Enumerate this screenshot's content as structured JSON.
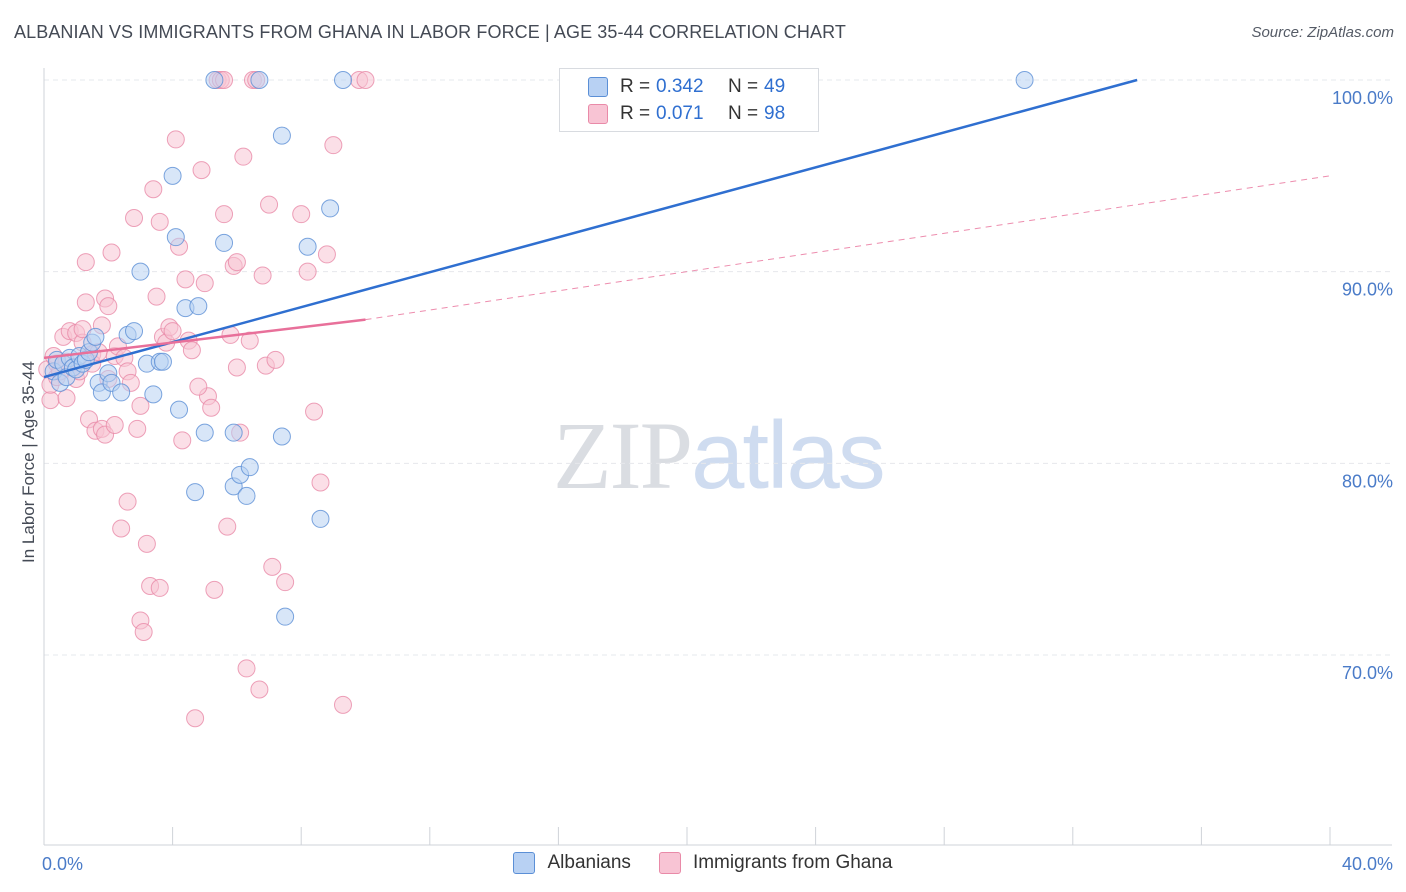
{
  "title": "ALBANIAN VS IMMIGRANTS FROM GHANA IN LABOR FORCE | AGE 35-44 CORRELATION CHART",
  "source": "Source: ZipAtlas.com",
  "watermark": {
    "zip": "ZIP",
    "atlas": "atlas"
  },
  "legend": {
    "rows": [
      {
        "r_label": "R =",
        "r_value": "0.342",
        "n_label": "N =",
        "n_value": "49"
      },
      {
        "r_label": "R =",
        "r_value": "0.071",
        "n_label": "N =",
        "n_value": "98"
      }
    ]
  },
  "colors": {
    "albanians_fill": "#b8d1f3",
    "albanians_stroke": "#5b8fd6",
    "albanians_line": "#2f6fd0",
    "ghana_fill": "#f8c4d4",
    "ghana_stroke": "#e98aa8",
    "ghana_line": "#e8709a",
    "tick_text": "#4a7bc8",
    "grid": "#e6e8ec"
  },
  "chart_data": {
    "type": "scatter",
    "title": "ALBANIAN VS IMMIGRANTS FROM GHANA IN LABOR FORCE | AGE 35-44 CORRELATION CHART",
    "xlabel": "",
    "ylabel": "In Labor Force | Age 35-44",
    "xlim": [
      0,
      40
    ],
    "ylim": [
      60,
      101
    ],
    "x_ticks": [
      {
        "value": 0,
        "label": "0.0%"
      },
      {
        "value": 40,
        "label": "40.0%"
      }
    ],
    "y_ticks": [
      {
        "value": 100,
        "label": "100.0%"
      },
      {
        "value": 90,
        "label": "90.0%"
      },
      {
        "value": 80,
        "label": "80.0%"
      },
      {
        "value": 70,
        "label": "70.0%"
      }
    ],
    "series": [
      {
        "name": "Albanians",
        "R": 0.342,
        "N": 49,
        "trend": {
          "x": [
            0.0,
            34.0
          ],
          "y": [
            84.5,
            100.0
          ],
          "style": "solid"
        },
        "points": [
          [
            0.3,
            84.8
          ],
          [
            0.4,
            85.4
          ],
          [
            0.5,
            84.2
          ],
          [
            0.6,
            85.2
          ],
          [
            0.7,
            84.5
          ],
          [
            0.8,
            85.5
          ],
          [
            0.9,
            85.0
          ],
          [
            1.0,
            84.9
          ],
          [
            1.1,
            85.6
          ],
          [
            1.2,
            85.2
          ],
          [
            1.3,
            85.4
          ],
          [
            1.4,
            85.8
          ],
          [
            1.5,
            86.3
          ],
          [
            1.6,
            86.6
          ],
          [
            1.7,
            84.2
          ],
          [
            1.8,
            83.7
          ],
          [
            2.0,
            84.7
          ],
          [
            2.1,
            84.2
          ],
          [
            2.4,
            83.7
          ],
          [
            2.6,
            86.7
          ],
          [
            2.8,
            86.9
          ],
          [
            3.0,
            90.0
          ],
          [
            3.2,
            85.2
          ],
          [
            3.4,
            83.6
          ],
          [
            3.6,
            85.3
          ],
          [
            3.7,
            85.3
          ],
          [
            4.0,
            95.0
          ],
          [
            4.1,
            91.8
          ],
          [
            4.4,
            88.1
          ],
          [
            4.8,
            88.2
          ],
          [
            4.7,
            78.5
          ],
          [
            4.2,
            82.8
          ],
          [
            5.0,
            81.6
          ],
          [
            5.3,
            100.0
          ],
          [
            5.6,
            91.5
          ],
          [
            5.9,
            78.8
          ],
          [
            5.9,
            81.6
          ],
          [
            6.1,
            79.4
          ],
          [
            6.3,
            78.3
          ],
          [
            6.4,
            79.8
          ],
          [
            6.7,
            100.0
          ],
          [
            7.4,
            97.1
          ],
          [
            7.4,
            81.4
          ],
          [
            7.5,
            72.0
          ],
          [
            8.2,
            91.3
          ],
          [
            8.6,
            77.1
          ],
          [
            8.9,
            93.3
          ],
          [
            9.3,
            100.0
          ],
          [
            30.5,
            100.0
          ]
        ]
      },
      {
        "name": "Immigrants from Ghana",
        "R": 0.071,
        "N": 98,
        "trend": {
          "x": [
            0.0,
            10.0
          ],
          "y": [
            85.5,
            87.5
          ],
          "style": "solid",
          "extended": {
            "x": [
              10.0,
              40.0
            ],
            "y": [
              87.5,
              95.0
            ],
            "style": "dashed"
          }
        },
        "points": [
          [
            0.1,
            84.9
          ],
          [
            0.2,
            83.3
          ],
          [
            0.2,
            84.1
          ],
          [
            0.3,
            85.6
          ],
          [
            0.4,
            85.2
          ],
          [
            0.4,
            84.5
          ],
          [
            0.5,
            84.8
          ],
          [
            0.6,
            86.6
          ],
          [
            0.7,
            83.4
          ],
          [
            0.7,
            85.3
          ],
          [
            0.8,
            86.9
          ],
          [
            0.9,
            85.0
          ],
          [
            1.0,
            86.8
          ],
          [
            1.0,
            84.4
          ],
          [
            1.1,
            84.8
          ],
          [
            1.2,
            86.3
          ],
          [
            1.2,
            87.0
          ],
          [
            1.3,
            90.5
          ],
          [
            1.3,
            88.4
          ],
          [
            1.4,
            82.3
          ],
          [
            1.5,
            85.7
          ],
          [
            1.5,
            85.2
          ],
          [
            1.6,
            81.7
          ],
          [
            1.7,
            85.8
          ],
          [
            1.8,
            87.2
          ],
          [
            1.8,
            81.8
          ],
          [
            1.9,
            88.6
          ],
          [
            2.0,
            88.2
          ],
          [
            2.0,
            84.4
          ],
          [
            2.1,
            91.0
          ],
          [
            2.2,
            85.6
          ],
          [
            2.3,
            86.1
          ],
          [
            2.4,
            76.6
          ],
          [
            2.5,
            85.5
          ],
          [
            2.6,
            84.8
          ],
          [
            2.7,
            84.2
          ],
          [
            2.8,
            92.8
          ],
          [
            2.9,
            81.8
          ],
          [
            3.0,
            83.0
          ],
          [
            3.0,
            71.8
          ],
          [
            3.1,
            71.2
          ],
          [
            3.2,
            75.8
          ],
          [
            3.3,
            73.6
          ],
          [
            3.4,
            94.3
          ],
          [
            3.5,
            88.7
          ],
          [
            3.6,
            92.6
          ],
          [
            3.7,
            86.6
          ],
          [
            3.8,
            86.3
          ],
          [
            3.9,
            87.1
          ],
          [
            4.0,
            86.9
          ],
          [
            4.1,
            96.9
          ],
          [
            4.2,
            91.3
          ],
          [
            4.3,
            81.2
          ],
          [
            4.4,
            89.6
          ],
          [
            4.5,
            86.4
          ],
          [
            4.6,
            85.9
          ],
          [
            4.7,
            66.7
          ],
          [
            4.9,
            95.3
          ],
          [
            5.0,
            89.4
          ],
          [
            5.1,
            83.5
          ],
          [
            5.2,
            82.9
          ],
          [
            5.3,
            73.4
          ],
          [
            5.4,
            100.0
          ],
          [
            5.5,
            100.0
          ],
          [
            5.6,
            93.0
          ],
          [
            5.7,
            76.7
          ],
          [
            5.8,
            86.7
          ],
          [
            5.9,
            90.3
          ],
          [
            6.0,
            90.5
          ],
          [
            6.1,
            81.6
          ],
          [
            6.2,
            96.0
          ],
          [
            6.3,
            69.3
          ],
          [
            6.4,
            86.4
          ],
          [
            6.5,
            100.0
          ],
          [
            6.6,
            100.0
          ],
          [
            6.7,
            68.2
          ],
          [
            6.8,
            89.8
          ],
          [
            6.9,
            85.1
          ],
          [
            7.0,
            93.5
          ],
          [
            7.1,
            74.6
          ],
          [
            7.2,
            85.4
          ],
          [
            7.5,
            73.8
          ],
          [
            8.0,
            93.0
          ],
          [
            8.2,
            90.0
          ],
          [
            8.4,
            82.7
          ],
          [
            8.6,
            79.0
          ],
          [
            8.8,
            90.9
          ],
          [
            9.0,
            96.6
          ],
          [
            9.3,
            67.4
          ],
          [
            9.8,
            100.0
          ],
          [
            10.0,
            100.0
          ],
          [
            3.6,
            73.5
          ],
          [
            2.6,
            78.0
          ],
          [
            1.9,
            81.5
          ],
          [
            5.6,
            100.0
          ],
          [
            4.8,
            84.0
          ],
          [
            2.2,
            82.0
          ],
          [
            6.0,
            85.0
          ]
        ]
      }
    ]
  }
}
